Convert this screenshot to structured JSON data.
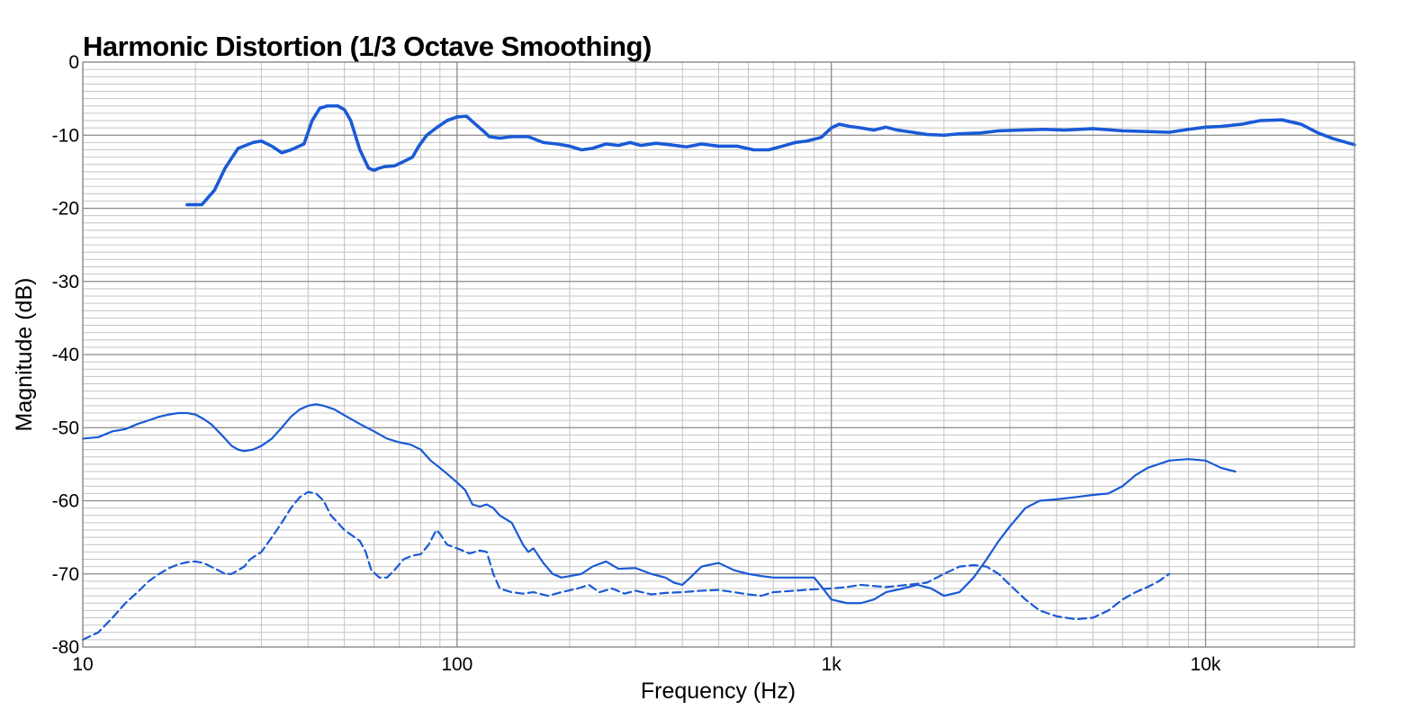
{
  "chart_data": {
    "type": "line",
    "title": "Harmonic Distortion (1/3 Octave Smoothing)",
    "xlabel": "Frequency (Hz)",
    "ylabel": "Magnitude (dB)",
    "x_scale": "log",
    "xlim": [
      10,
      25000
    ],
    "ylim": [
      -80,
      0
    ],
    "grid": true,
    "x_ticks": [
      {
        "value": 10,
        "label": "10"
      },
      {
        "value": 100,
        "label": "100"
      },
      {
        "value": 1000,
        "label": "1k"
      },
      {
        "value": 10000,
        "label": "10k"
      }
    ],
    "y_ticks": [
      {
        "value": 0,
        "label": "0"
      },
      {
        "value": -10,
        "label": "-10"
      },
      {
        "value": -20,
        "label": "-20"
      },
      {
        "value": -30,
        "label": "-30"
      },
      {
        "value": -40,
        "label": "-40"
      },
      {
        "value": -50,
        "label": "-50"
      },
      {
        "value": -60,
        "label": "-60"
      },
      {
        "value": -70,
        "label": "-70"
      },
      {
        "value": -80,
        "label": "-80"
      }
    ],
    "line_color": "#1a5ad6",
    "series": [
      {
        "style": "thick",
        "points": [
          [
            19,
            -19.5
          ],
          [
            20.8,
            -19.5
          ],
          [
            22.5,
            -17.5
          ],
          [
            24,
            -14.5
          ],
          [
            26,
            -11.8
          ],
          [
            28.5,
            -11
          ],
          [
            30,
            -10.8
          ],
          [
            32,
            -11.5
          ],
          [
            34,
            -12.4
          ],
          [
            36,
            -12
          ],
          [
            39,
            -11.2
          ],
          [
            41,
            -8
          ],
          [
            43,
            -6.3
          ],
          [
            45,
            -6
          ],
          [
            48,
            -6
          ],
          [
            50,
            -6.5
          ],
          [
            52,
            -8
          ],
          [
            55,
            -12
          ],
          [
            58,
            -14.5
          ],
          [
            60,
            -14.8
          ],
          [
            62,
            -14.5
          ],
          [
            64,
            -14.3
          ],
          [
            68,
            -14.2
          ],
          [
            72,
            -13.6
          ],
          [
            76,
            -13
          ],
          [
            79,
            -11.5
          ],
          [
            83,
            -10
          ],
          [
            88,
            -9
          ],
          [
            94,
            -8
          ],
          [
            100,
            -7.5
          ],
          [
            106,
            -7.4
          ],
          [
            112,
            -8.5
          ],
          [
            118,
            -9.5
          ],
          [
            122,
            -10.2
          ],
          [
            130,
            -10.4
          ],
          [
            140,
            -10.2
          ],
          [
            155,
            -10.2
          ],
          [
            170,
            -11
          ],
          [
            185,
            -11.2
          ],
          [
            200,
            -11.5
          ],
          [
            215,
            -12
          ],
          [
            230,
            -11.8
          ],
          [
            250,
            -11.2
          ],
          [
            270,
            -11.4
          ],
          [
            290,
            -11
          ],
          [
            310,
            -11.4
          ],
          [
            340,
            -11.1
          ],
          [
            370,
            -11.3
          ],
          [
            410,
            -11.6
          ],
          [
            450,
            -11.2
          ],
          [
            500,
            -11.5
          ],
          [
            560,
            -11.5
          ],
          [
            620,
            -12
          ],
          [
            680,
            -12
          ],
          [
            740,
            -11.5
          ],
          [
            800,
            -11
          ],
          [
            860,
            -10.8
          ],
          [
            940,
            -10.3
          ],
          [
            1000,
            -9
          ],
          [
            1050,
            -8.5
          ],
          [
            1120,
            -8.8
          ],
          [
            1200,
            -9
          ],
          [
            1300,
            -9.3
          ],
          [
            1400,
            -8.9
          ],
          [
            1500,
            -9.3
          ],
          [
            1650,
            -9.6
          ],
          [
            1800,
            -9.9
          ],
          [
            2000,
            -10
          ],
          [
            2200,
            -9.8
          ],
          [
            2500,
            -9.7
          ],
          [
            2800,
            -9.4
          ],
          [
            3200,
            -9.3
          ],
          [
            3700,
            -9.2
          ],
          [
            4200,
            -9.3
          ],
          [
            5000,
            -9.1
          ],
          [
            6000,
            -9.4
          ],
          [
            7000,
            -9.5
          ],
          [
            8000,
            -9.6
          ],
          [
            9000,
            -9.2
          ],
          [
            10000,
            -8.9
          ],
          [
            11000,
            -8.8
          ],
          [
            12500,
            -8.5
          ],
          [
            14000,
            -8
          ],
          [
            16000,
            -7.9
          ],
          [
            18000,
            -8.5
          ],
          [
            20000,
            -9.7
          ],
          [
            22000,
            -10.5
          ],
          [
            25000,
            -11.3
          ]
        ]
      },
      {
        "style": "solid",
        "points": [
          [
            10,
            -51.5
          ],
          [
            11,
            -51.3
          ],
          [
            12,
            -50.5
          ],
          [
            13,
            -50.2
          ],
          [
            14,
            -49.5
          ],
          [
            15,
            -49
          ],
          [
            16,
            -48.5
          ],
          [
            17,
            -48.2
          ],
          [
            18,
            -48
          ],
          [
            19,
            -48
          ],
          [
            20,
            -48.2
          ],
          [
            21,
            -48.8
          ],
          [
            22,
            -49.5
          ],
          [
            23,
            -50.5
          ],
          [
            24,
            -51.5
          ],
          [
            25,
            -52.5
          ],
          [
            26,
            -53
          ],
          [
            27,
            -53.2
          ],
          [
            28.5,
            -53
          ],
          [
            30,
            -52.5
          ],
          [
            32,
            -51.5
          ],
          [
            34,
            -50
          ],
          [
            36,
            -48.5
          ],
          [
            38,
            -47.5
          ],
          [
            40,
            -47
          ],
          [
            42,
            -46.8
          ],
          [
            44,
            -47
          ],
          [
            47,
            -47.5
          ],
          [
            50,
            -48.3
          ],
          [
            55,
            -49.5
          ],
          [
            60,
            -50.5
          ],
          [
            65,
            -51.5
          ],
          [
            70,
            -52
          ],
          [
            75,
            -52.3
          ],
          [
            80,
            -53
          ],
          [
            85,
            -54.5
          ],
          [
            90,
            -55.5
          ],
          [
            95,
            -56.5
          ],
          [
            100,
            -57.5
          ],
          [
            105,
            -58.5
          ],
          [
            110,
            -60.5
          ],
          [
            115,
            -60.8
          ],
          [
            120,
            -60.5
          ],
          [
            125,
            -61
          ],
          [
            130,
            -62
          ],
          [
            140,
            -63
          ],
          [
            150,
            -66
          ],
          [
            155,
            -67
          ],
          [
            160,
            -66.5
          ],
          [
            170,
            -68.5
          ],
          [
            180,
            -70
          ],
          [
            190,
            -70.5
          ],
          [
            200,
            -70.3
          ],
          [
            215,
            -70
          ],
          [
            230,
            -69
          ],
          [
            250,
            -68.3
          ],
          [
            270,
            -69.3
          ],
          [
            300,
            -69.2
          ],
          [
            330,
            -70
          ],
          [
            360,
            -70.5
          ],
          [
            380,
            -71.2
          ],
          [
            400,
            -71.5
          ],
          [
            420,
            -70.5
          ],
          [
            450,
            -69
          ],
          [
            500,
            -68.5
          ],
          [
            550,
            -69.5
          ],
          [
            600,
            -70
          ],
          [
            650,
            -70.3
          ],
          [
            700,
            -70.5
          ],
          [
            800,
            -70.5
          ],
          [
            900,
            -70.5
          ],
          [
            950,
            -72
          ],
          [
            1000,
            -73.5
          ],
          [
            1100,
            -74
          ],
          [
            1200,
            -74
          ],
          [
            1300,
            -73.5
          ],
          [
            1400,
            -72.5
          ],
          [
            1550,
            -72
          ],
          [
            1700,
            -71.5
          ],
          [
            1850,
            -72
          ],
          [
            2000,
            -73
          ],
          [
            2200,
            -72.5
          ],
          [
            2400,
            -70.5
          ],
          [
            2600,
            -68
          ],
          [
            2800,
            -65.5
          ],
          [
            3000,
            -63.5
          ],
          [
            3300,
            -61
          ],
          [
            3600,
            -60
          ],
          [
            4000,
            -59.8
          ],
          [
            4500,
            -59.5
          ],
          [
            5000,
            -59.2
          ],
          [
            5500,
            -59
          ],
          [
            6000,
            -58
          ],
          [
            6500,
            -56.5
          ],
          [
            7000,
            -55.5
          ],
          [
            8000,
            -54.5
          ],
          [
            9000,
            -54.3
          ],
          [
            10000,
            -54.5
          ],
          [
            11000,
            -55.5
          ],
          [
            12000,
            -56
          ]
        ]
      },
      {
        "style": "dashed",
        "points": [
          [
            10,
            -79
          ],
          [
            11,
            -78
          ],
          [
            12,
            -76
          ],
          [
            13,
            -74
          ],
          [
            14,
            -72.5
          ],
          [
            15,
            -71
          ],
          [
            16,
            -70
          ],
          [
            17,
            -69.2
          ],
          [
            18,
            -68.7
          ],
          [
            19,
            -68.4
          ],
          [
            20,
            -68.3
          ],
          [
            21,
            -68.5
          ],
          [
            22,
            -69
          ],
          [
            23,
            -69.5
          ],
          [
            24,
            -70
          ],
          [
            25,
            -70
          ],
          [
            26,
            -69.5
          ],
          [
            27,
            -69
          ],
          [
            28,
            -68
          ],
          [
            30,
            -67
          ],
          [
            32,
            -65
          ],
          [
            34,
            -63
          ],
          [
            36,
            -61
          ],
          [
            38,
            -59.5
          ],
          [
            40,
            -58.8
          ],
          [
            42,
            -59
          ],
          [
            44,
            -60
          ],
          [
            46,
            -62
          ],
          [
            48,
            -63
          ],
          [
            50,
            -64
          ],
          [
            55,
            -65.5
          ],
          [
            57,
            -67
          ],
          [
            59,
            -69.5
          ],
          [
            62,
            -70.5
          ],
          [
            65,
            -70.5
          ],
          [
            68,
            -69.5
          ],
          [
            72,
            -68
          ],
          [
            76,
            -67.5
          ],
          [
            80,
            -67.3
          ],
          [
            84,
            -66
          ],
          [
            88,
            -64
          ],
          [
            90,
            -64.5
          ],
          [
            94,
            -66
          ],
          [
            100,
            -66.5
          ],
          [
            108,
            -67.2
          ],
          [
            115,
            -66.8
          ],
          [
            120,
            -67
          ],
          [
            125,
            -70
          ],
          [
            130,
            -72
          ],
          [
            140,
            -72.5
          ],
          [
            150,
            -72.7
          ],
          [
            160,
            -72.5
          ],
          [
            175,
            -73
          ],
          [
            190,
            -72.5
          ],
          [
            210,
            -72
          ],
          [
            225,
            -71.5
          ],
          [
            240,
            -72.5
          ],
          [
            260,
            -72
          ],
          [
            280,
            -72.7
          ],
          [
            300,
            -72.3
          ],
          [
            330,
            -72.8
          ],
          [
            360,
            -72.6
          ],
          [
            400,
            -72.5
          ],
          [
            450,
            -72.3
          ],
          [
            500,
            -72.2
          ],
          [
            550,
            -72.5
          ],
          [
            600,
            -72.8
          ],
          [
            650,
            -73
          ],
          [
            700,
            -72.5
          ],
          [
            800,
            -72.3
          ],
          [
            900,
            -72.1
          ],
          [
            1000,
            -72
          ],
          [
            1100,
            -71.8
          ],
          [
            1200,
            -71.5
          ],
          [
            1400,
            -71.8
          ],
          [
            1600,
            -71.5
          ],
          [
            1800,
            -71.2
          ],
          [
            2000,
            -70
          ],
          [
            2200,
            -69
          ],
          [
            2400,
            -68.8
          ],
          [
            2600,
            -69
          ],
          [
            2800,
            -70
          ],
          [
            3000,
            -71.5
          ],
          [
            3300,
            -73.5
          ],
          [
            3600,
            -75
          ],
          [
            4000,
            -75.8
          ],
          [
            4500,
            -76.2
          ],
          [
            5000,
            -76
          ],
          [
            5500,
            -75
          ],
          [
            6000,
            -73.5
          ],
          [
            6500,
            -72.5
          ],
          [
            7000,
            -71.8
          ],
          [
            7500,
            -71
          ],
          [
            8000,
            -70
          ]
        ]
      }
    ]
  }
}
